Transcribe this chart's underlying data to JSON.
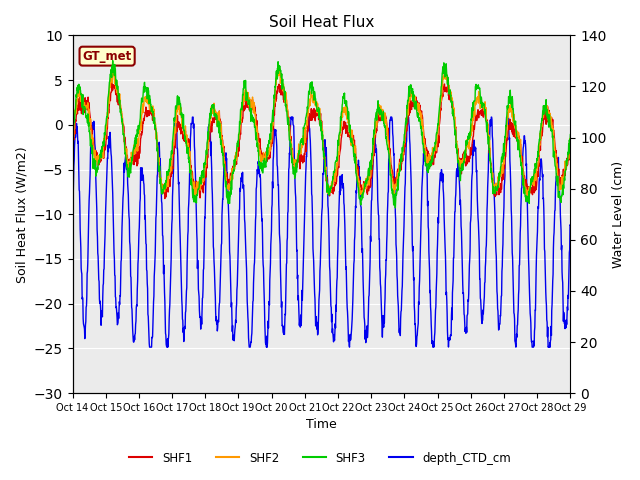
{
  "title": "Soil Heat Flux",
  "xlabel": "Time",
  "ylabel_left": "Soil Heat Flux (W/m2)",
  "ylabel_right": "Water Level (cm)",
  "ylim_left": [
    -30,
    10
  ],
  "ylim_right": [
    0,
    140
  ],
  "yticks_left": [
    -30,
    -25,
    -20,
    -15,
    -10,
    -5,
    0,
    5,
    10
  ],
  "yticks_right": [
    0,
    20,
    40,
    60,
    80,
    100,
    120,
    140
  ],
  "xtick_labels": [
    "Oct 14",
    "Oct 15",
    "Oct 16",
    "Oct 17",
    "Oct 18",
    "Oct 19",
    "Oct 20",
    "Oct 21",
    "Oct 22",
    "Oct 23",
    "Oct 24",
    "Oct 25",
    "Oct 26",
    "Oct 27",
    "Oct 28",
    "Oct 29"
  ],
  "colors": {
    "SHF1": "#dd0000",
    "SHF2": "#ff9900",
    "SHF3": "#00cc00",
    "depth_CTD_cm": "#0000ee"
  },
  "annotation_text": "GT_met",
  "annotation_fg": "#8b0000",
  "annotation_bg": "#ffffcc",
  "background_color": "#ebebeb",
  "grid_color": "#ffffff",
  "n_points": 1500
}
